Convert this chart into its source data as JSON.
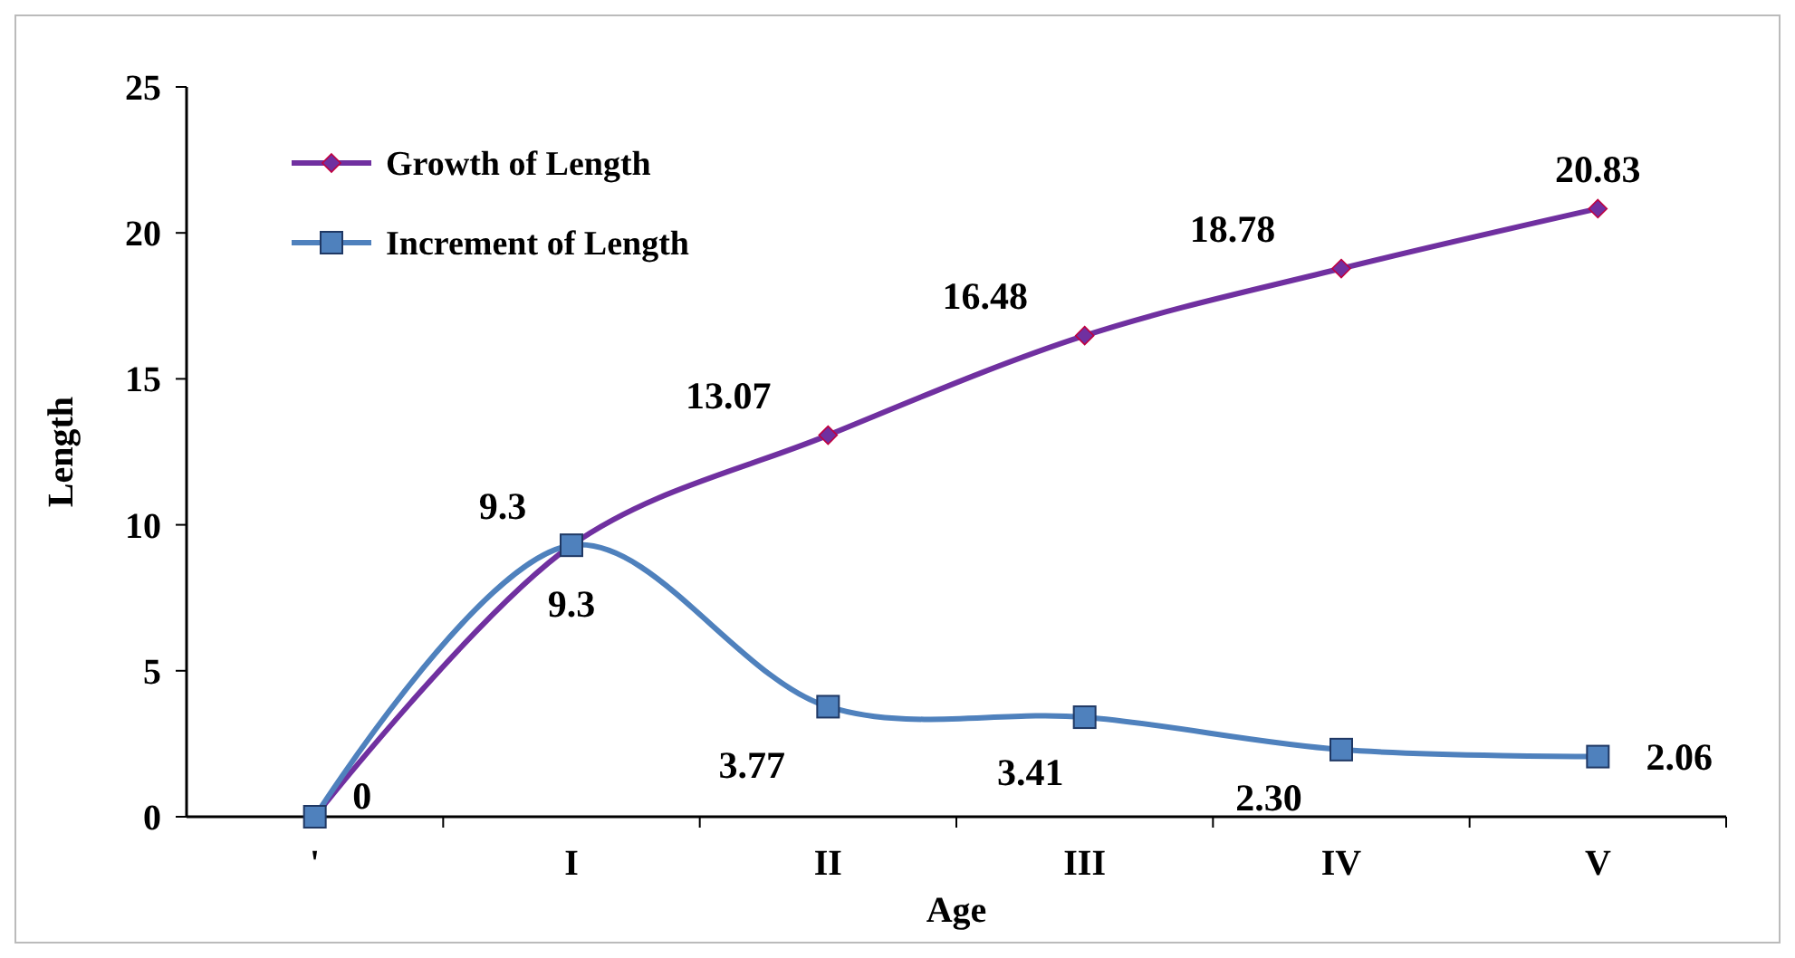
{
  "chart_data": {
    "type": "line",
    "xlabel": "Age",
    "ylabel": "Length",
    "categories": [
      "'",
      "I",
      "II",
      "III",
      "IV",
      "V"
    ],
    "ylim": [
      0,
      25
    ],
    "yticks": [
      0,
      5,
      10,
      15,
      20,
      25
    ],
    "grid": false,
    "legend": "top left",
    "series": [
      {
        "name": "Growth of Length",
        "color": "#7030a0",
        "marker": "diamond",
        "values": [
          0,
          9.3,
          13.07,
          16.48,
          18.78,
          20.83
        ],
        "value_labels": [
          null,
          "9.3",
          "13.07",
          "16.48",
          "18.78",
          "20.83"
        ]
      },
      {
        "name": "Increment of Length",
        "color": "#4f81bd",
        "marker": "square",
        "values": [
          0,
          9.3,
          3.77,
          3.41,
          2.3,
          2.06
        ],
        "value_labels": [
          "0",
          "9.3",
          "3.77",
          "3.41",
          "2.30",
          "2.06"
        ]
      }
    ]
  }
}
